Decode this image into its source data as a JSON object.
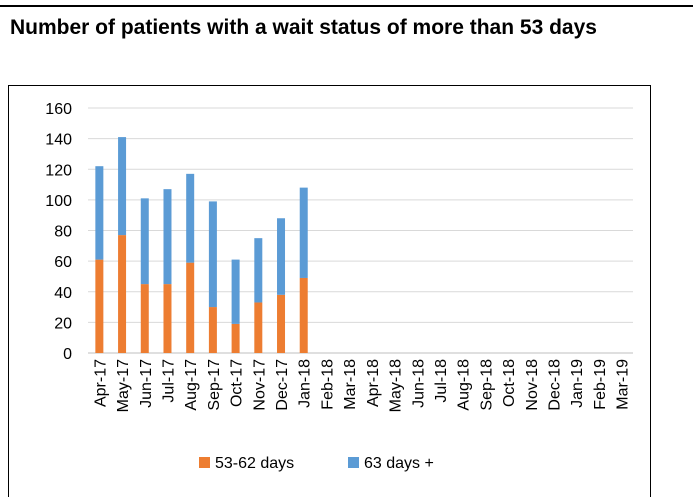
{
  "chart_data": {
    "type": "stacked_bar",
    "title": "Number of patients with a wait status of more than 53 days",
    "categories": [
      "Apr-17",
      "May-17",
      "Jun-17",
      "Jul-17",
      "Aug-17",
      "Sep-17",
      "Oct-17",
      "Nov-17",
      "Dec-17",
      "Jan-18",
      "Feb-18",
      "Mar-18",
      "Apr-18",
      "May-18",
      "Jun-18",
      "Jul-18",
      "Aug-18",
      "Sep-18",
      "Oct-18",
      "Nov-18",
      "Dec-18",
      "Jan-19",
      "Feb-19",
      "Mar-19"
    ],
    "series": [
      {
        "name": "53-62 days",
        "color": "#ed7d31",
        "values": [
          61,
          77,
          45,
          45,
          59,
          30,
          19,
          33,
          38,
          49,
          null,
          null,
          null,
          null,
          null,
          null,
          null,
          null,
          null,
          null,
          null,
          null,
          null,
          null
        ]
      },
      {
        "name": "63 days +",
        "color": "#5b9bd5",
        "values": [
          61,
          64,
          56,
          62,
          58,
          69,
          42,
          42,
          50,
          59,
          null,
          null,
          null,
          null,
          null,
          null,
          null,
          null,
          null,
          null,
          null,
          null,
          null,
          null
        ]
      }
    ],
    "ylim": [
      0,
      160
    ],
    "yticks": [
      0,
      20,
      40,
      60,
      80,
      100,
      120,
      140,
      160
    ],
    "grid": true,
    "legend": "bottom"
  }
}
